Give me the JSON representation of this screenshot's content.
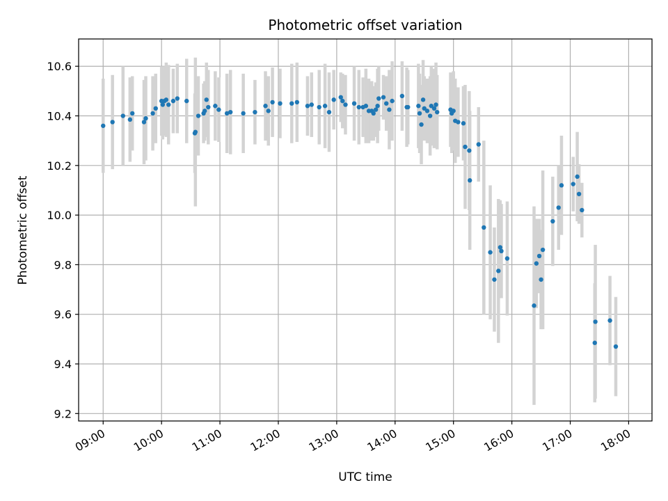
{
  "chart_data": {
    "type": "scatter",
    "title": "Photometric offset variation",
    "xlabel": "UTC time",
    "ylabel": "Photometric offset",
    "x_unit": "hours UTC",
    "xlim": [
      8.58,
      18.4
    ],
    "ylim": [
      9.17,
      10.71
    ],
    "x_ticks": [
      9,
      10,
      11,
      12,
      13,
      14,
      15,
      16,
      17,
      18
    ],
    "x_tick_labels": [
      "09:00",
      "10:00",
      "11:00",
      "12:00",
      "13:00",
      "14:00",
      "15:00",
      "16:00",
      "17:00",
      "18:00"
    ],
    "y_ticks": [
      9.2,
      9.4,
      9.6,
      9.8,
      10.0,
      10.2,
      10.4,
      10.6
    ],
    "y_tick_labels": [
      "9.2",
      "9.4",
      "9.6",
      "9.8",
      "10.0",
      "10.2",
      "10.4",
      "10.6"
    ],
    "grid": true,
    "point_color": "#1f77b4",
    "errorbar_color": "#d3d3d3",
    "series": [
      {
        "x": [
          9.0,
          9.16,
          9.34,
          9.46,
          9.5,
          9.7,
          9.73,
          9.85,
          9.9,
          10.0,
          10.02,
          10.05,
          10.08,
          10.12,
          10.2,
          10.27,
          10.43,
          10.57,
          10.58,
          10.63,
          10.72,
          10.74,
          10.77,
          10.8,
          10.92,
          10.98,
          11.12,
          11.18,
          11.4,
          11.6,
          11.78,
          11.83,
          11.9,
          12.03,
          12.23,
          12.32,
          12.5,
          12.57,
          12.7,
          12.8,
          12.87,
          12.95,
          13.07,
          13.1,
          13.15,
          13.3,
          13.38,
          13.45,
          13.5,
          13.55,
          13.6,
          13.63,
          13.67,
          13.7,
          13.72,
          13.8,
          13.85,
          13.9,
          13.95,
          14.12,
          14.2,
          14.22,
          14.4,
          14.42,
          14.45,
          14.48,
          14.5,
          14.55,
          14.6,
          14.62,
          14.67,
          14.7,
          14.72,
          14.95,
          14.97,
          15.0,
          15.03,
          15.08,
          15.17,
          15.2,
          15.27,
          15.28,
          15.43,
          15.52,
          15.63,
          15.7,
          15.77,
          15.8,
          15.82,
          15.92,
          16.38,
          16.42,
          16.47,
          16.5,
          16.53,
          16.7,
          16.8,
          16.85,
          17.05,
          17.12,
          17.15,
          17.2,
          17.42,
          17.43,
          17.68,
          17.78
        ],
        "y": [
          10.36,
          10.375,
          10.4,
          10.385,
          10.41,
          10.375,
          10.39,
          10.41,
          10.43,
          10.46,
          10.445,
          10.46,
          10.465,
          10.445,
          10.46,
          10.47,
          10.46,
          10.33,
          10.335,
          10.4,
          10.41,
          10.42,
          10.465,
          10.435,
          10.44,
          10.425,
          10.41,
          10.415,
          10.41,
          10.415,
          10.44,
          10.42,
          10.455,
          10.45,
          10.45,
          10.455,
          10.44,
          10.445,
          10.435,
          10.44,
          10.415,
          10.465,
          10.475,
          10.46,
          10.445,
          10.45,
          10.435,
          10.435,
          10.44,
          10.42,
          10.42,
          10.41,
          10.425,
          10.44,
          10.47,
          10.475,
          10.45,
          10.425,
          10.46,
          10.48,
          10.435,
          10.435,
          10.44,
          10.41,
          10.365,
          10.465,
          10.43,
          10.42,
          10.4,
          10.44,
          10.43,
          10.445,
          10.415,
          10.425,
          10.41,
          10.42,
          10.38,
          10.375,
          10.37,
          10.275,
          10.26,
          10.14,
          10.285,
          9.95,
          9.85,
          9.74,
          9.775,
          9.87,
          9.855,
          9.825,
          9.635,
          9.805,
          9.835,
          9.74,
          9.86,
          9.975,
          10.03,
          10.12,
          10.125,
          10.155,
          10.085,
          10.02,
          9.485,
          9.57,
          9.575,
          9.47
        ],
        "err": [
          0.19,
          0.19,
          0.2,
          0.17,
          0.15,
          0.17,
          0.17,
          0.15,
          0.14,
          0.14,
          0.14,
          0.14,
          0.15,
          0.16,
          0.13,
          0.14,
          0.17,
          0.16,
          0.3,
          0.16,
          0.12,
          0.12,
          0.15,
          0.15,
          0.14,
          0.13,
          0.16,
          0.17,
          0.16,
          0.13,
          0.14,
          0.14,
          0.14,
          0.14,
          0.16,
          0.16,
          0.12,
          0.13,
          0.15,
          0.17,
          0.16,
          0.12,
          0.1,
          0.11,
          0.12,
          0.15,
          0.15,
          0.12,
          0.15,
          0.13,
          0.12,
          0.11,
          0.11,
          0.15,
          0.13,
          0.09,
          0.11,
          0.16,
          0.16,
          0.14,
          0.16,
          0.15,
          0.17,
          0.16,
          0.16,
          0.16,
          0.13,
          0.13,
          0.16,
          0.16,
          0.16,
          0.17,
          0.15,
          0.15,
          0.16,
          0.16,
          0.17,
          0.14,
          0.15,
          0.25,
          0.24,
          0.28,
          0.15,
          0.35,
          0.27,
          0.21,
          0.29,
          0.19,
          0.19,
          0.23,
          0.4,
          0.18,
          0.15,
          0.2,
          0.32,
          0.18,
          0.17,
          0.2,
          0.11,
          0.18,
          0.12,
          0.11,
          0.24,
          0.31,
          0.18,
          0.2
        ]
      }
    ]
  }
}
